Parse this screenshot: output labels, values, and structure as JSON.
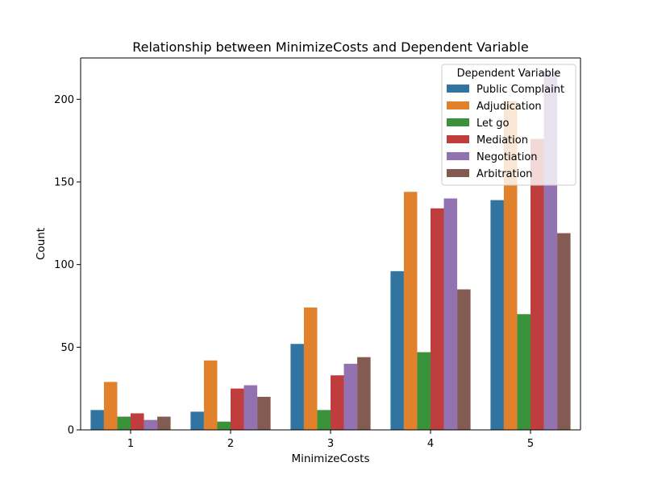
{
  "chart_data": {
    "type": "bar",
    "title": "Relationship between MinimizeCosts and Dependent Variable",
    "xlabel": "MinimizeCosts",
    "ylabel": "Count",
    "categories": [
      "1",
      "2",
      "3",
      "4",
      "5"
    ],
    "ylim": [
      0,
      225
    ],
    "yticks": [
      0,
      50,
      100,
      150,
      200
    ],
    "grid": false,
    "legend": {
      "title": "Dependent Variable",
      "placement": "top-right"
    },
    "series": [
      {
        "name": "Public Complaint",
        "color": "#3274a1",
        "values": [
          12,
          11,
          52,
          96,
          139
        ]
      },
      {
        "name": "Adjudication",
        "color": "#e1812c",
        "values": [
          29,
          42,
          74,
          144,
          199
        ]
      },
      {
        "name": "Let go",
        "color": "#3a923a",
        "values": [
          8,
          5,
          12,
          47,
          70
        ]
      },
      {
        "name": "Mediation",
        "color": "#c03d3e",
        "values": [
          10,
          25,
          33,
          134,
          176
        ]
      },
      {
        "name": "Negotiation",
        "color": "#9372b2",
        "values": [
          6,
          27,
          40,
          140,
          217
        ]
      },
      {
        "name": "Arbitration",
        "color": "#845b53",
        "values": [
          8,
          20,
          44,
          85,
          119
        ]
      }
    ]
  }
}
